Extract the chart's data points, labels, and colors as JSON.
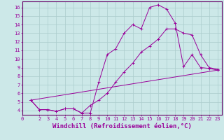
{
  "background_color": "#cce8e8",
  "line_color": "#990099",
  "xlabel": "Windchill (Refroidissement éolien,°C)",
  "xlabel_fontsize": 6.5,
  "ylabel_ticks": [
    4,
    5,
    6,
    7,
    8,
    9,
    10,
    11,
    12,
    13,
    14,
    15,
    16
  ],
  "xlabel_ticks": [
    0,
    2,
    3,
    4,
    5,
    6,
    7,
    8,
    9,
    10,
    11,
    12,
    13,
    14,
    15,
    16,
    17,
    18,
    19,
    20,
    21,
    22,
    23
  ],
  "xlim": [
    0,
    23.5
  ],
  "ylim": [
    3.5,
    16.7
  ],
  "line1_x": [
    1,
    2,
    3,
    4,
    5,
    6,
    7,
    8,
    9,
    10,
    11,
    12,
    13,
    14,
    15,
    16,
    17,
    18,
    19,
    20,
    21,
    22,
    23
  ],
  "line1_y": [
    5.2,
    4.1,
    4.1,
    3.9,
    4.2,
    4.2,
    3.7,
    3.7,
    7.3,
    10.5,
    11.2,
    13.0,
    14.0,
    13.5,
    16.0,
    16.3,
    15.8,
    14.2,
    9.1,
    10.5,
    9.0,
    8.9,
    8.7
  ],
  "line2_x": [
    1,
    2,
    3,
    4,
    5,
    6,
    7,
    8,
    9,
    10,
    11,
    12,
    13,
    14,
    15,
    16,
    17,
    18,
    19,
    20,
    21,
    22,
    23
  ],
  "line2_y": [
    5.2,
    4.1,
    4.1,
    3.9,
    4.2,
    4.2,
    3.7,
    4.6,
    5.2,
    6.0,
    7.3,
    8.5,
    9.5,
    10.8,
    11.5,
    12.3,
    13.5,
    13.5,
    13.0,
    12.8,
    10.5,
    9.0,
    8.8
  ],
  "line3_x": [
    1,
    23
  ],
  "line3_y": [
    5.2,
    8.7
  ],
  "grid_color": "#aacccc",
  "tick_fontsize": 5.0
}
